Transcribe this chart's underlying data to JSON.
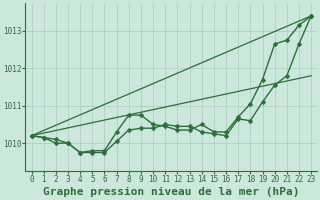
{
  "bg_color": "#cce8dc",
  "plot_bg_color": "#cce8dc",
  "grid_color": "#aaccbb",
  "line_color": "#2d6e3a",
  "title": "Graphe pression niveau de la mer (hPa)",
  "xlabel_ticks": [
    "0",
    "1",
    "2",
    "3",
    "4",
    "5",
    "6",
    "7",
    "8",
    "9",
    "10",
    "11",
    "12",
    "13",
    "14",
    "15",
    "16",
    "17",
    "18",
    "19",
    "20",
    "21",
    "22",
    "23"
  ],
  "yticks": [
    1010,
    1011,
    1012,
    1013
  ],
  "ylim": [
    1009.25,
    1013.75
  ],
  "xlim": [
    -0.5,
    23.5
  ],
  "series": [
    {
      "x": [
        0,
        1,
        2,
        3,
        4,
        5,
        6,
        7,
        8,
        9,
        10,
        11,
        12,
        13,
        14,
        15,
        16,
        17,
        18,
        19,
        20,
        21,
        22,
        23
      ],
      "y": [
        1010.2,
        1010.15,
        1010.1,
        1010.0,
        1009.75,
        1009.8,
        1009.8,
        1010.3,
        1010.75,
        1010.75,
        1010.5,
        1010.45,
        1010.35,
        1010.35,
        1010.5,
        1010.3,
        1010.3,
        1010.7,
        1011.05,
        1011.7,
        1012.65,
        1012.75,
        1013.15,
        1013.4
      ],
      "marker": true,
      "markersize": 2.5,
      "linewidth": 1.0
    },
    {
      "x": [
        0,
        1,
        2,
        3,
        4,
        5,
        6,
        7,
        8,
        9,
        10,
        11,
        12,
        13,
        14,
        15,
        16,
        17,
        18,
        19,
        20,
        21,
        22,
        23
      ],
      "y": [
        1010.2,
        1010.15,
        1010.0,
        1010.0,
        1009.75,
        1009.75,
        1009.75,
        1010.05,
        1010.35,
        1010.4,
        1010.4,
        1010.5,
        1010.45,
        1010.45,
        1010.3,
        1010.25,
        1010.2,
        1010.65,
        1010.6,
        1011.1,
        1011.55,
        1011.8,
        1012.65,
        1013.4
      ],
      "marker": true,
      "markersize": 2.5,
      "linewidth": 1.0
    },
    {
      "x": [
        0,
        23
      ],
      "y": [
        1010.2,
        1011.8
      ],
      "marker": false,
      "linewidth": 0.9
    },
    {
      "x": [
        0,
        23
      ],
      "y": [
        1010.2,
        1013.4
      ],
      "marker": false,
      "linewidth": 0.9
    }
  ],
  "marker_symbol": "D",
  "title_fontsize": 8,
  "tick_fontsize": 5.5
}
